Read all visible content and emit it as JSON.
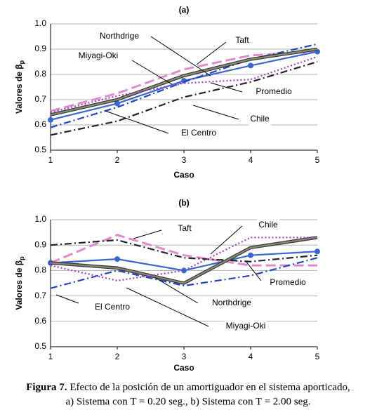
{
  "chart_data": [
    {
      "type": "line",
      "title": "(a)",
      "xlabel": "Caso",
      "ylabel": "Valores de β",
      "ylabel_subscript": "p",
      "x": [
        1,
        2,
        3,
        4,
        5
      ],
      "xlim": [
        1,
        5
      ],
      "xticks": [
        1,
        2,
        3,
        4,
        5
      ],
      "ylim": [
        0.5,
        1
      ],
      "yticks": [
        0.5,
        0.6,
        0.7,
        0.8,
        0.9,
        {
          "value": 1,
          "label": "1.0"
        }
      ],
      "grid": true,
      "series": [
        {
          "name": "Taft",
          "color": "#e08ccc",
          "dash": "14 6",
          "values": [
            0.655,
            0.725,
            0.82,
            0.875,
            0.89
          ]
        },
        {
          "name": "Promedio",
          "color": "#3a66d0",
          "marker": true,
          "values": [
            0.62,
            0.685,
            0.775,
            0.835,
            0.89
          ]
        },
        {
          "name": "Chile",
          "color": "#222222",
          "dash": "10 4 2 4",
          "values": [
            0.56,
            0.615,
            0.71,
            0.77,
            0.85
          ]
        },
        {
          "name": "El Centro",
          "color": "#2244bb",
          "dash": "10 4 2 4",
          "values": [
            0.59,
            0.67,
            0.77,
            0.86,
            0.92
          ]
        },
        {
          "name": "Northdrige",
          "color": "#8a8a7a",
          "values": [
            0.64,
            0.7,
            0.795,
            0.86,
            0.9
          ]
        },
        {
          "name": "Miyagi-Oki",
          "color": "#a040c0",
          "dash": "2 3",
          "values": [
            0.65,
            0.715,
            0.765,
            0.78,
            0.87
          ]
        }
      ]
    },
    {
      "type": "line",
      "title": "(b)",
      "xlabel": "Caso",
      "ylabel": "Valores de β",
      "ylabel_subscript": "p",
      "x": [
        1,
        2,
        3,
        4,
        5
      ],
      "xlim": [
        1,
        5
      ],
      "xticks": [
        1,
        2,
        3,
        4,
        5
      ],
      "ylim": [
        0.5,
        1
      ],
      "yticks": [
        0.5,
        0.6,
        0.7,
        0.8,
        0.9,
        {
          "value": 1,
          "label": "1.0"
        }
      ],
      "grid": true,
      "series": [
        {
          "name": "Taft",
          "color": "#e08ccc",
          "dash": "14 6",
          "values": [
            0.83,
            0.94,
            0.86,
            0.82,
            0.82
          ]
        },
        {
          "name": "Promedio",
          "color": "#3a66d0",
          "marker": true,
          "values": [
            0.83,
            0.845,
            0.8,
            0.86,
            0.875
          ]
        },
        {
          "name": "Chile",
          "color": "#222222",
          "dash": "10 4 2 4",
          "values": [
            0.9,
            0.92,
            0.85,
            0.835,
            0.86
          ]
        },
        {
          "name": "El Centro",
          "color": "#2244bb",
          "dash": "10 4 2 4",
          "values": [
            0.73,
            0.8,
            0.74,
            0.78,
            0.85
          ]
        },
        {
          "name": "Northdrige",
          "color": "#8a8a7a",
          "values": [
            0.83,
            0.81,
            0.75,
            0.89,
            0.93
          ]
        },
        {
          "name": "Miyagi-Oki",
          "color": "#a040c0",
          "dash": "2 3",
          "values": [
            0.82,
            0.76,
            0.8,
            0.93,
            0.93
          ]
        }
      ]
    }
  ],
  "caption": {
    "label": "Figura 7.",
    "line1": "Efecto de la posición de un amortiguador en el sistema aporticado,",
    "line2": "a) Sistema con T = 0.20 seg., b) Sistema con T = 2.00 seg."
  }
}
